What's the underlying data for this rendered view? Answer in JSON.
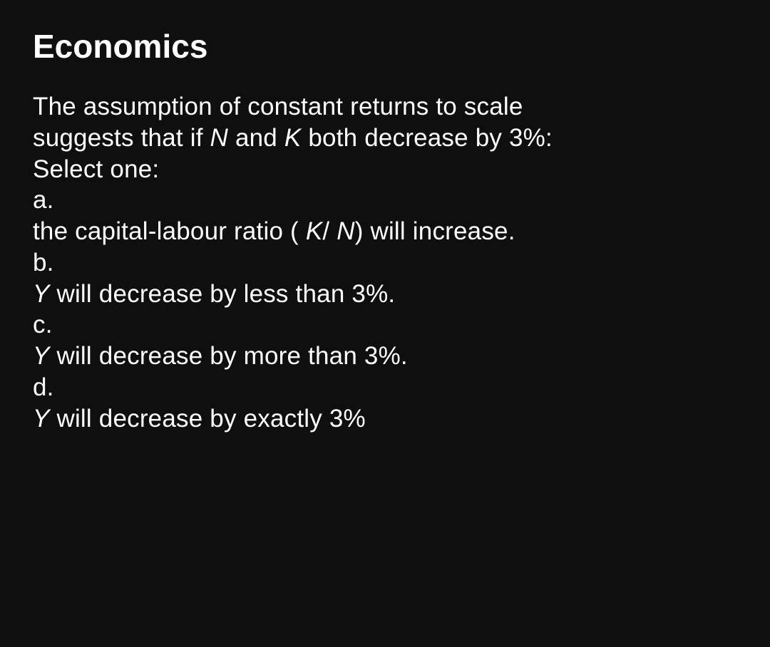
{
  "title": "Economics",
  "question": {
    "line1_part1": "The assumption of constant returns to scale",
    "line2_part1": "suggests that if  ",
    "line2_italic1": "N",
    "line2_part2": " and  ",
    "line2_italic2": "K",
    "line2_part3": " both decrease by 3%:",
    "select": "Select one:"
  },
  "options": {
    "a": {
      "label": "a.",
      "text_part1": "the capital-labour ratio ( ",
      "text_italic1": "K",
      "text_part2": "/ ",
      "text_italic2": "N",
      "text_part3": ") will increase."
    },
    "b": {
      "label": "b.",
      "text_italic1": "Y",
      "text_part1": " will decrease by less than 3%."
    },
    "c": {
      "label": "c.",
      "text_italic1": "Y",
      "text_part1": " will decrease by more than 3%."
    },
    "d": {
      "label": "d.",
      "text_italic1": "Y",
      "text_part1": " will decrease by exactly 3%"
    }
  },
  "styles": {
    "background_color": "#0f0f0f",
    "text_color": "#ffffff",
    "title_fontsize": 46,
    "body_fontsize": 35
  }
}
